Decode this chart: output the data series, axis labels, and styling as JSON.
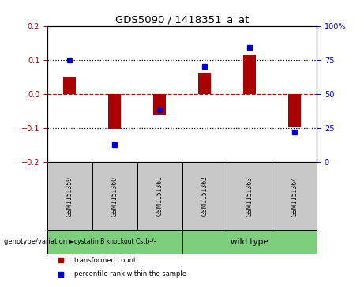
{
  "title": "GDS5090 / 1418351_a_at",
  "samples": [
    "GSM1151359",
    "GSM1151360",
    "GSM1151361",
    "GSM1151362",
    "GSM1151363",
    "GSM1151364"
  ],
  "bar_values": [
    0.05,
    -0.103,
    -0.062,
    0.063,
    0.115,
    -0.095
  ],
  "percentile_values": [
    75,
    13,
    38,
    70,
    84,
    22
  ],
  "ylim_left": [
    -0.2,
    0.2
  ],
  "ylim_right": [
    0,
    100
  ],
  "bar_color": "#aa0000",
  "dot_color": "#0000cc",
  "groups": [
    {
      "label": "cystatin B knockout Cstb-/-",
      "span": [
        0,
        3
      ],
      "color": "#7dce7d"
    },
    {
      "label": "wild type",
      "span": [
        3,
        6
      ],
      "color": "#7dce7d"
    }
  ],
  "group_row_label": "genotype/variation",
  "legend_bar_label": "transformed count",
  "legend_dot_label": "percentile rank within the sample",
  "zero_line_color": "#cc0000",
  "grid_color": "#000000",
  "background_color": "#ffffff",
  "plot_bg_color": "#ffffff",
  "sample_box_color": "#c8c8c8"
}
